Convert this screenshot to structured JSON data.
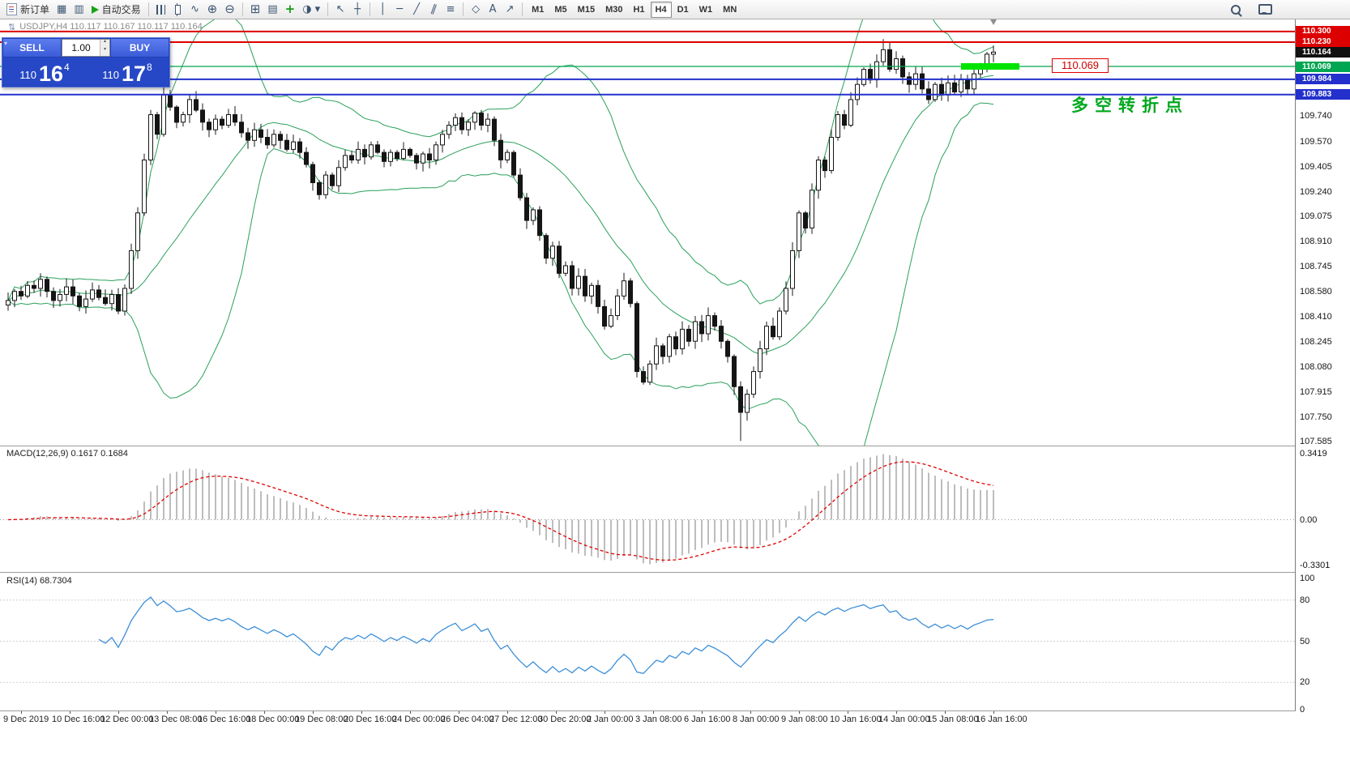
{
  "toolbar": {
    "new_order": "新订单",
    "autotrading": "自动交易",
    "timeframes": [
      "M1",
      "M5",
      "M15",
      "M30",
      "H1",
      "H4",
      "D1",
      "W1",
      "MN"
    ],
    "active_timeframe": "H4"
  },
  "icons": {
    "chart_window": "▦",
    "navigator": "▥",
    "line_chart": "∿",
    "zoom_in": "⊕",
    "zoom_out": "⊖",
    "new_chart": "⊞",
    "profiles": "▤",
    "indicators": "+",
    "periods": "◑",
    "dropdown": "▾",
    "cursor": "↖",
    "crosshair": "┼",
    "vline": "│",
    "hline": "─",
    "trendline": "╱",
    "channel": "∥",
    "fibonacci": "≡",
    "shapes": "◇",
    "text_tool": "A",
    "arrow_tool": "↗",
    "updown": "⇅"
  },
  "symbol_info": {
    "text": "USDJPY,H4  110.117 110.167 110.117 110.164"
  },
  "trade_panel": {
    "sell_label": "SELL",
    "buy_label": "BUY",
    "volume": "1.00",
    "sell_small": "110",
    "sell_big": "16",
    "sell_sup": "4",
    "buy_small": "110",
    "buy_big": "17",
    "buy_sup": "8"
  },
  "price_axis": {
    "scale_values": [
      "109.740",
      "109.570",
      "109.405",
      "109.240",
      "109.075",
      "108.910",
      "108.745",
      "108.580",
      "108.410",
      "108.245",
      "108.080",
      "107.915",
      "107.750",
      "107.585"
    ],
    "tags": [
      {
        "label": "110.300",
        "bg": "#dd0000"
      },
      {
        "label": "110.230",
        "bg": "#dd0000"
      },
      {
        "label": "110.164",
        "bg": "#111111"
      },
      {
        "label": "110.069",
        "bg": "#00a651"
      },
      {
        "label": "109.984",
        "bg": "#2330cc"
      },
      {
        "label": "109.883",
        "bg": "#2330cc"
      }
    ]
  },
  "macd_panel": {
    "label": "MACD(12,26,9) 0.1617 0.1684",
    "axis": [
      "0.3419",
      "0.00",
      "-0.3301"
    ]
  },
  "rsi_panel": {
    "label": "RSI(14) 68.7304",
    "axis": [
      "100",
      "80",
      "50",
      "20",
      "0"
    ]
  },
  "time_axis": {
    "labels": [
      "9 Dec 2019",
      "10 Dec 16:00",
      "12 Dec 00:00",
      "13 Dec 08:00",
      "16 Dec 16:00",
      "18 Dec 00:00",
      "19 Dec 08:00",
      "20 Dec 16:00",
      "24 Dec 00:00",
      "26 Dec 04:00",
      "27 Dec 12:00",
      "30 Dec 20:00",
      "2 Jan 00:00",
      "3 Jan 08:00",
      "6 Jan 16:00",
      "8 Jan 00:00",
      "9 Jan 08:00",
      "10 Jan 16:00",
      "14 Jan 00:00",
      "15 Jan 08:00",
      "16 Jan 16:00"
    ]
  },
  "chart_data": {
    "type": "candlestick",
    "symbol": "USDJPY",
    "timeframe": "H4",
    "price_max": 110.38,
    "price_min": 107.56,
    "first_open": 108.49,
    "closes": [
      108.52,
      108.58,
      108.55,
      108.62,
      108.6,
      108.66,
      108.58,
      108.52,
      108.56,
      108.61,
      108.55,
      108.48,
      108.53,
      108.59,
      108.54,
      108.5,
      108.56,
      108.45,
      108.6,
      108.85,
      109.1,
      109.45,
      109.75,
      109.62,
      109.88,
      109.8,
      109.7,
      109.75,
      109.85,
      109.78,
      109.7,
      109.65,
      109.72,
      109.68,
      109.75,
      109.7,
      109.63,
      109.58,
      109.65,
      109.6,
      109.55,
      109.62,
      109.58,
      109.52,
      109.57,
      109.5,
      109.42,
      109.3,
      109.22,
      109.35,
      109.28,
      109.4,
      109.48,
      109.45,
      109.52,
      109.47,
      109.55,
      109.5,
      109.44,
      109.5,
      109.46,
      109.52,
      109.48,
      109.43,
      109.49,
      109.45,
      109.55,
      109.62,
      109.68,
      109.73,
      109.65,
      109.7,
      109.76,
      109.68,
      109.72,
      109.58,
      109.45,
      109.5,
      109.35,
      109.2,
      109.05,
      109.12,
      108.95,
      108.8,
      108.88,
      108.7,
      108.75,
      108.6,
      108.68,
      108.55,
      108.62,
      108.48,
      108.35,
      108.42,
      108.55,
      108.65,
      108.5,
      108.05,
      107.98,
      108.1,
      108.22,
      108.15,
      108.28,
      108.2,
      108.33,
      108.25,
      108.38,
      108.3,
      108.42,
      108.35,
      108.25,
      108.15,
      107.95,
      107.78,
      107.9,
      108.05,
      108.2,
      108.35,
      108.28,
      108.45,
      108.6,
      108.85,
      109.1,
      109.0,
      109.25,
      109.45,
      109.38,
      109.6,
      109.75,
      109.68,
      109.85,
      109.95,
      110.05,
      109.98,
      110.1,
      110.18,
      110.05,
      110.12,
      110.0,
      109.95,
      110.02,
      109.92,
      109.85,
      109.95,
      109.88,
      109.96,
      109.9,
      109.98,
      109.92,
      110.02,
      110.08,
      110.15,
      110.164
    ],
    "wick_overrides": {
      "24": {
        "high": 109.93
      },
      "113": {
        "low": 107.59
      },
      "135": {
        "high": 110.25
      }
    },
    "bollinger": {
      "period": 20,
      "deviation": 2,
      "color": "#2aa05a"
    },
    "macd": {
      "fast": 12,
      "slow": 26,
      "signal": 9,
      "hist_color": "#bdbdbd",
      "signal_color": "#e10000"
    },
    "rsi": {
      "period": 14,
      "color": "#3d8fd8",
      "levels": [
        80,
        50,
        20
      ]
    },
    "hlines": [
      {
        "price": 110.3,
        "color": "#dd0000",
        "w": 2
      },
      {
        "price": 110.23,
        "color": "#dd0000",
        "w": 2
      },
      {
        "price": 110.069,
        "color": "#00a651",
        "w": 1.2
      },
      {
        "price": 109.984,
        "color": "#2330cc",
        "w": 2
      },
      {
        "price": 109.883,
        "color": "#2330cc",
        "w": 2
      }
    ],
    "highlight": {
      "start_index": 147,
      "end_index": 156,
      "price": 110.069,
      "height": 8,
      "color": "#00e400"
    },
    "annotations": [
      {
        "type": "callout",
        "text": "110.069",
        "index": 161,
        "price": 110.069
      },
      {
        "type": "note",
        "text": "多空转折点",
        "index": 164,
        "price": 109.82
      }
    ]
  }
}
